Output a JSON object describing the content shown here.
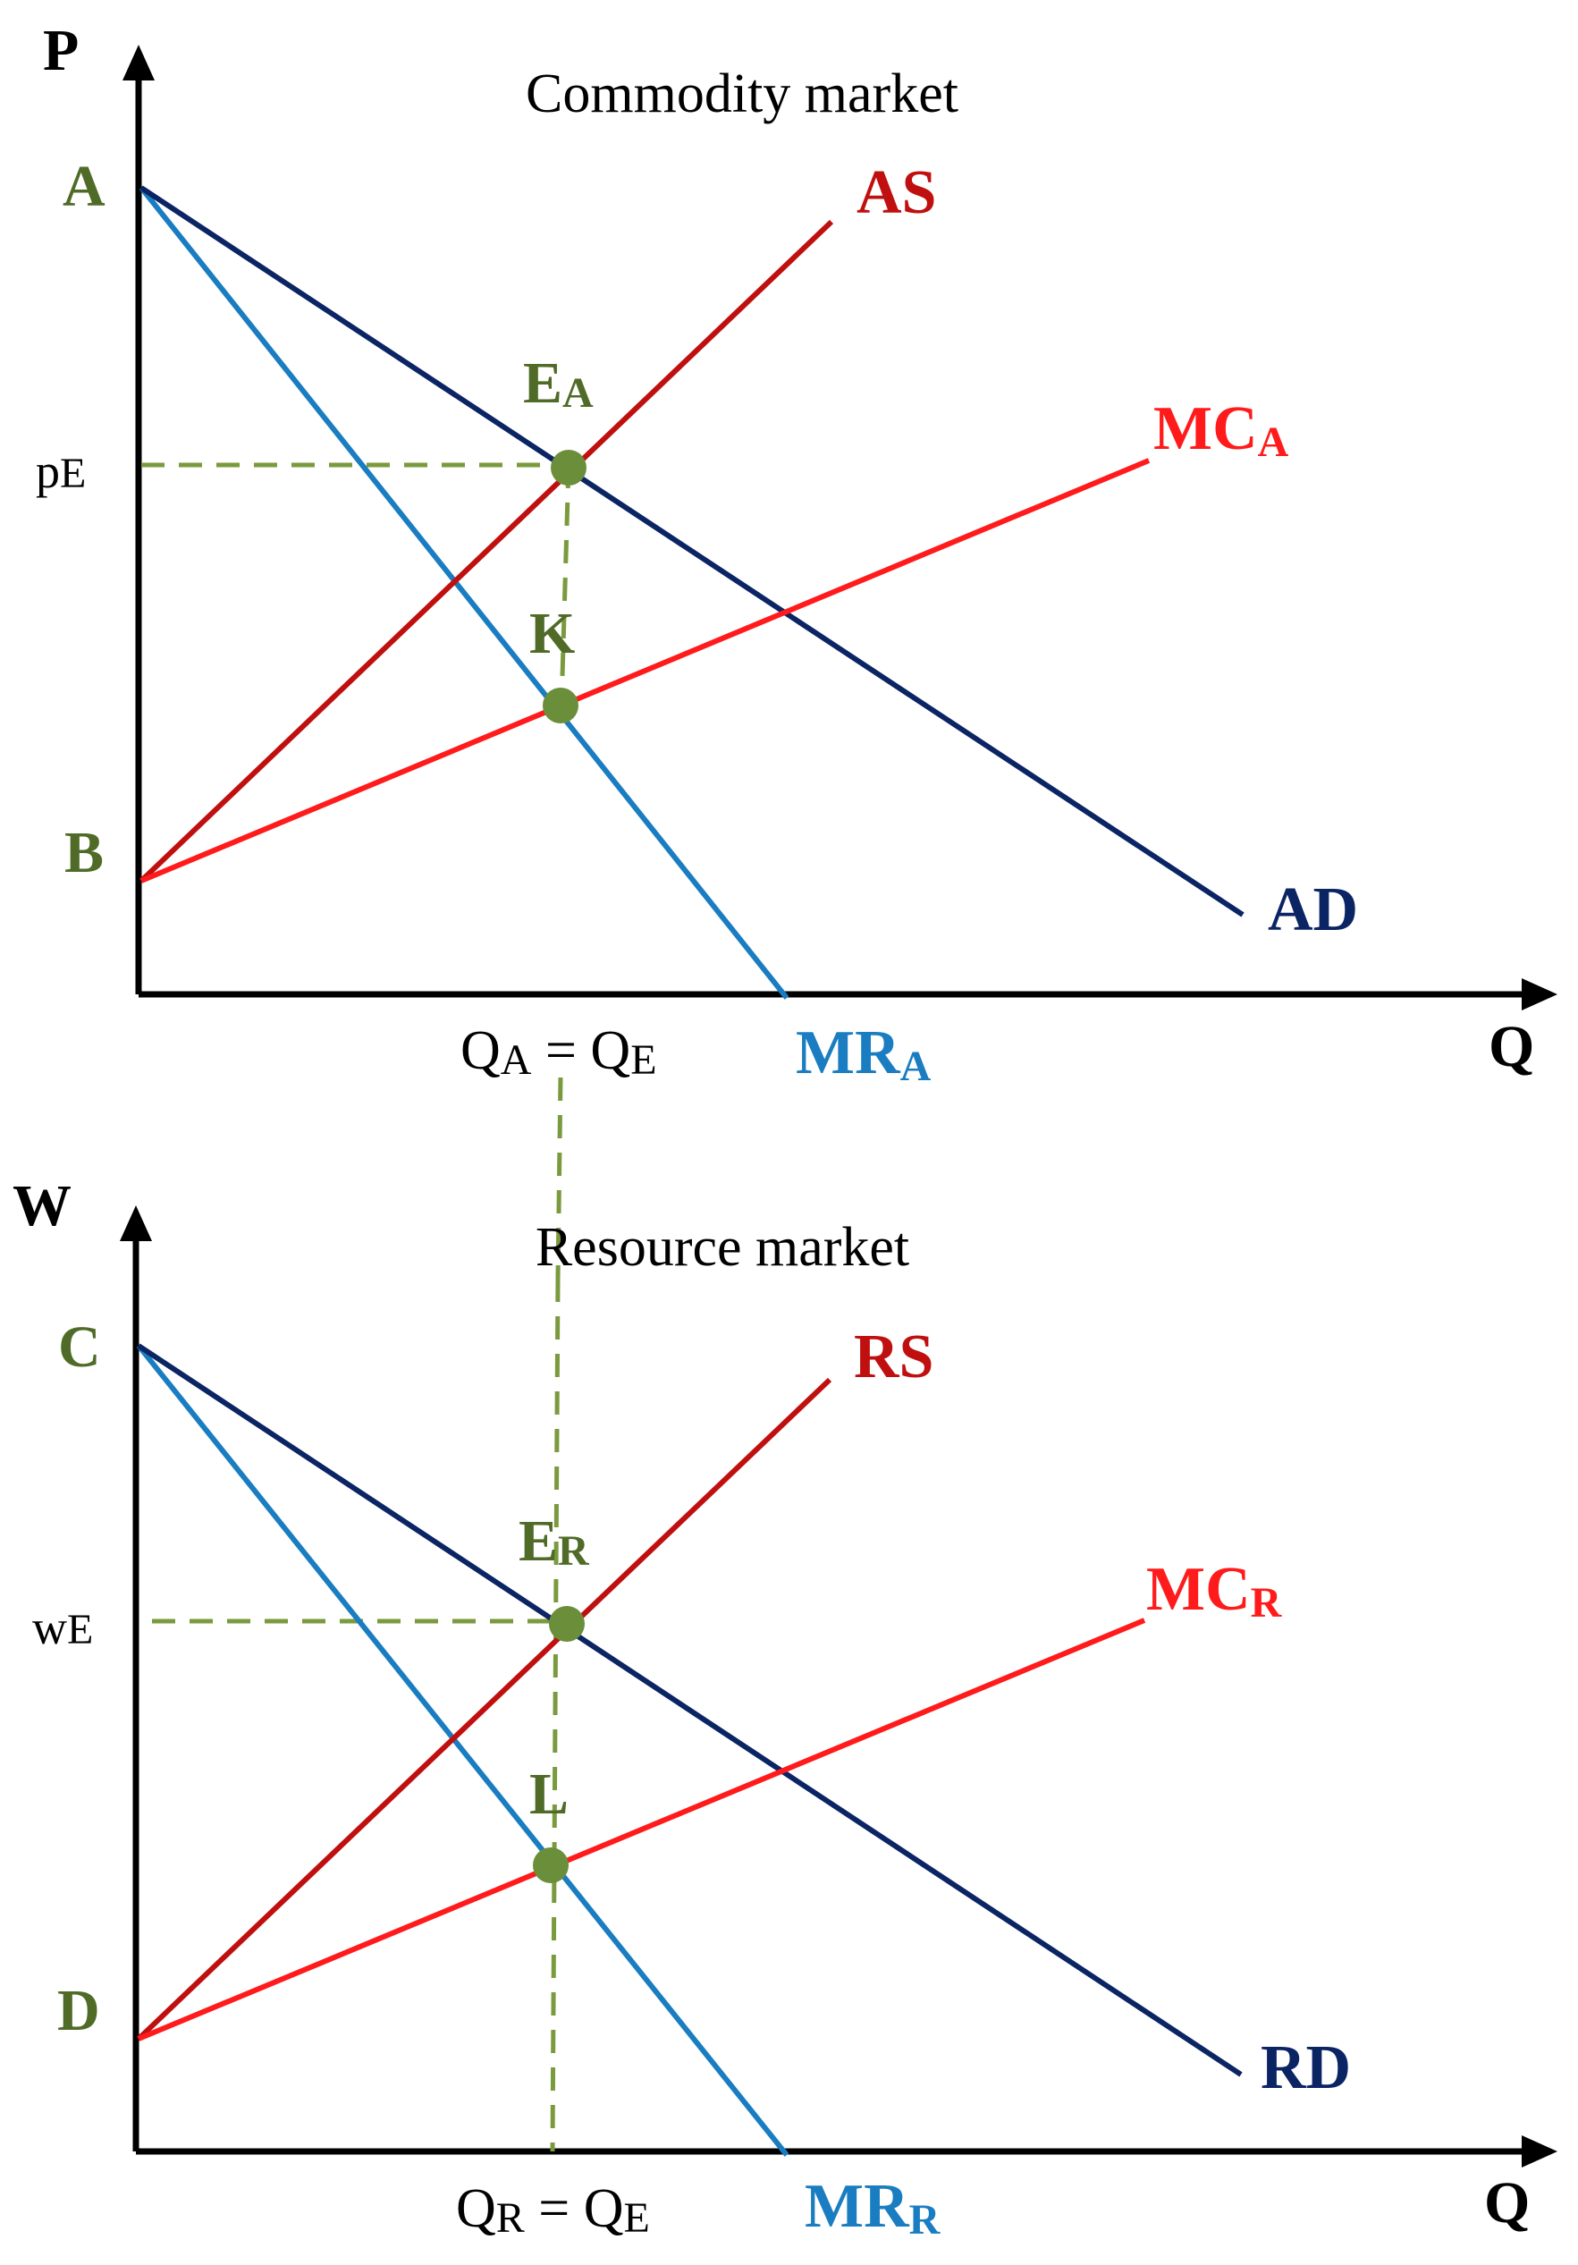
{
  "colors": {
    "axis": "#000000",
    "demand": "#0b2464",
    "marginal_revenue": "#1a7dc1",
    "supply": "#c00f0f",
    "marginal_cost": "#ff1b1b",
    "guide": "#7a9a3e",
    "point": "#6b8e3a",
    "point_label": "#4f6b27"
  },
  "panels": {
    "commodity": {
      "title": "Commodity market",
      "y_axis": "P",
      "x_axis": "Q",
      "intercepts": {
        "top": "A",
        "bottom": "B"
      },
      "price": {
        "main": "p",
        "sub": "E"
      },
      "equilibrium_point": {
        "main": "E",
        "sub": "A"
      },
      "lower_point": "K",
      "curves": {
        "supply": "AS",
        "demand": "AD",
        "marginal_cost": {
          "main": "MC",
          "sub": "A"
        },
        "marginal_revenue": {
          "main": "MR",
          "sub": "A"
        }
      },
      "quantity": {
        "q1": "Q",
        "q1_sub": "A",
        "eq": " = ",
        "q2": "Q",
        "q2_sub": "E"
      }
    },
    "resource": {
      "title": "Resource market",
      "y_axis": "W",
      "x_axis": "Q",
      "intercepts": {
        "top": "C",
        "bottom": "D"
      },
      "price": {
        "main": "w",
        "sub": "E"
      },
      "equilibrium_point": {
        "main": "E",
        "sub": "R"
      },
      "lower_point": "L",
      "curves": {
        "supply": "RS",
        "demand": "RD",
        "marginal_cost": {
          "main": "MC",
          "sub": "R"
        },
        "marginal_revenue": {
          "main": "MR",
          "sub": "R"
        }
      },
      "quantity": {
        "q1": "Q",
        "q1_sub": "R",
        "eq": " = ",
        "q2": "Q",
        "q2_sub": "E"
      }
    }
  }
}
